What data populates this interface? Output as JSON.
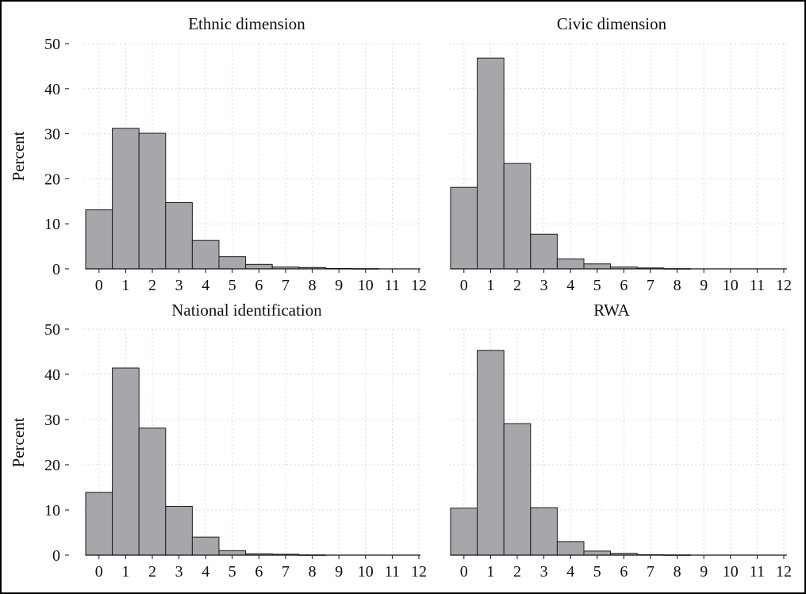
{
  "colors": {
    "bar_fill": "#a6a7ab",
    "bar_stroke": "#1a1a1a",
    "grid": "#d9d9d9",
    "axis": "#111111",
    "frame": "#000000",
    "background": "#ffffff"
  },
  "chart_data": [
    {
      "type": "bar",
      "title": "Ethnic dimension",
      "xlabel": "",
      "ylabel": "Percent",
      "categories": [
        "0",
        "1",
        "2",
        "3",
        "4",
        "5",
        "6",
        "7",
        "8",
        "9",
        "10",
        "11",
        "12"
      ],
      "values": [
        13.1,
        31.2,
        30.1,
        14.7,
        6.3,
        2.7,
        1.0,
        0.4,
        0.3,
        0.1,
        0.05,
        0,
        0
      ],
      "yticks": [
        "0",
        "10",
        "20",
        "30",
        "40",
        "50"
      ],
      "ylim": [
        0,
        50
      ],
      "grid": true
    },
    {
      "type": "bar",
      "title": "Civic dimension",
      "xlabel": "",
      "ylabel": "",
      "categories": [
        "0",
        "1",
        "2",
        "3",
        "4",
        "5",
        "6",
        "7",
        "8",
        "9",
        "10",
        "11",
        "12"
      ],
      "values": [
        18.1,
        46.8,
        23.4,
        7.7,
        2.2,
        1.1,
        0.4,
        0.2,
        0.05,
        0,
        0,
        0,
        0
      ],
      "yticks": [],
      "ylim": [
        0,
        50
      ],
      "grid": true
    },
    {
      "type": "bar",
      "title": "National identification",
      "xlabel": "",
      "ylabel": "Percent",
      "categories": [
        "0",
        "1",
        "2",
        "3",
        "4",
        "5",
        "6",
        "7",
        "8",
        "9",
        "10",
        "11",
        "12"
      ],
      "values": [
        13.9,
        41.4,
        28.1,
        10.8,
        4.0,
        1.0,
        0.3,
        0.2,
        0.05,
        0,
        0,
        0,
        0
      ],
      "yticks": [
        "0",
        "10",
        "20",
        "30",
        "40",
        "50"
      ],
      "ylim": [
        0,
        50
      ],
      "grid": true
    },
    {
      "type": "bar",
      "title": "RWA",
      "xlabel": "",
      "ylabel": "",
      "categories": [
        "0",
        "1",
        "2",
        "3",
        "4",
        "5",
        "6",
        "7",
        "8",
        "9",
        "10",
        "11",
        "12"
      ],
      "values": [
        10.4,
        45.3,
        29.1,
        10.5,
        3.0,
        0.9,
        0.4,
        0.1,
        0.05,
        0,
        0,
        0,
        0
      ],
      "yticks": [],
      "ylim": [
        0,
        50
      ],
      "grid": true
    }
  ]
}
